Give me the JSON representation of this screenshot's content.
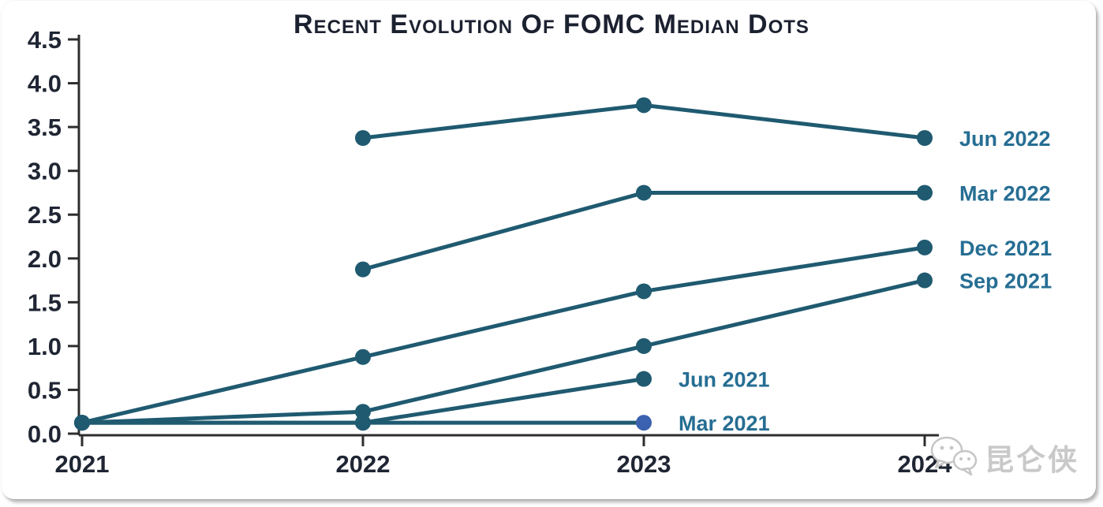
{
  "chart_data": {
    "type": "line",
    "title": "Recent Evolution Of FOMC Median Dots",
    "xlabel": "",
    "ylabel": "",
    "x_ticks": [
      "2021",
      "2022",
      "2023",
      "2024"
    ],
    "ylim": [
      0.0,
      4.5
    ],
    "y_tick_step": 0.5,
    "y_tick_labels": [
      "0.0",
      "0.5",
      "1.0",
      "1.5",
      "2.0",
      "2.5",
      "3.0",
      "3.5",
      "4.0",
      "4.5"
    ],
    "grid": false,
    "legend_position": "end-of-line-labels",
    "series": [
      {
        "name": "Jun 2022",
        "x": [
          2022,
          2023,
          2024
        ],
        "values": [
          3.375,
          3.75,
          3.375
        ]
      },
      {
        "name": "Mar 2022",
        "x": [
          2022,
          2023,
          2024
        ],
        "values": [
          1.875,
          2.75,
          2.75
        ]
      },
      {
        "name": "Dec 2021",
        "x": [
          2021,
          2022,
          2023,
          2024
        ],
        "values": [
          0.125,
          0.875,
          1.625,
          2.125
        ]
      },
      {
        "name": "Sep 2021",
        "x": [
          2021,
          2022,
          2023,
          2024
        ],
        "values": [
          0.125,
          0.25,
          1.0,
          1.75
        ]
      },
      {
        "name": "Jun 2021",
        "x": [
          2021,
          2022,
          2023
        ],
        "values": [
          0.125,
          0.125,
          0.625
        ]
      },
      {
        "name": "Mar 2021",
        "x": [
          2021,
          2022,
          2023
        ],
        "values": [
          0.125,
          0.125,
          0.125
        ],
        "end_marker_color": "#3a62b0"
      }
    ],
    "colors": {
      "line": "#1f5a70",
      "series_label": "#266e93",
      "axis": "#2e2e2e",
      "tick_label": "#1f2533",
      "title": "#1c2130"
    }
  },
  "watermark": {
    "text": "昆仑侠",
    "icon": "wechat-logo-icon",
    "color": "#c9c9c9"
  }
}
